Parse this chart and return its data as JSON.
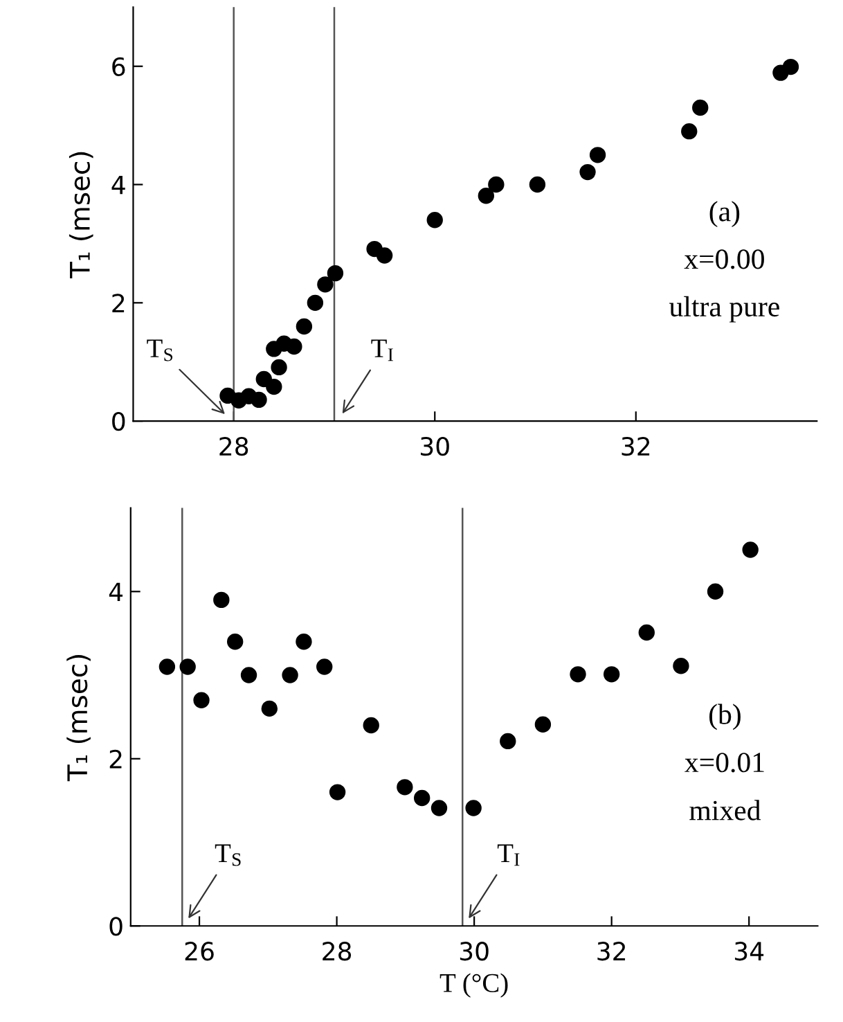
{
  "chart_data": [
    {
      "type": "scatter",
      "ylabel": "T₁ (msec)",
      "xlim": [
        27,
        33.8
      ],
      "ylim": [
        0,
        7
      ],
      "xticks": [
        28,
        30,
        32
      ],
      "yticks": [
        0,
        2,
        4,
        6
      ],
      "marker": "circle",
      "grid": false,
      "legend": false,
      "annotations": [
        "(a)",
        "x=0.00",
        "ultra pure"
      ],
      "ref_lines": [
        {
          "axis": "x",
          "value": 28.0,
          "label": "T$_{S}$",
          "color": "#555555"
        },
        {
          "axis": "x",
          "value": 29.0,
          "label": "T$_{I}$",
          "color": "#555555"
        }
      ],
      "series": [
        {
          "color": "#000000",
          "x": [
            27.94,
            28.05,
            28.15,
            28.25,
            28.3,
            28.4,
            28.4,
            28.45,
            28.5,
            28.6,
            28.7,
            28.81,
            28.91,
            29.01,
            29.4,
            29.5,
            30.0,
            30.51,
            30.61,
            31.02,
            31.52,
            31.62,
            32.53,
            32.64,
            33.44,
            33.54
          ],
          "values": [
            0.43,
            0.35,
            0.42,
            0.36,
            0.71,
            0.58,
            1.22,
            0.91,
            1.31,
            1.26,
            1.6,
            2.0,
            2.31,
            2.5,
            2.91,
            2.8,
            3.4,
            3.81,
            4.0,
            4.0,
            4.21,
            4.5,
            4.9,
            5.3,
            5.89,
            5.99
          ]
        }
      ]
    },
    {
      "type": "scatter",
      "xlabel": "T (°C)",
      "ylabel": "T₁ (msec)",
      "xlim": [
        25,
        35
      ],
      "ylim": [
        0,
        5
      ],
      "xticks": [
        26,
        28,
        30,
        32,
        34
      ],
      "yticks": [
        0,
        2,
        4
      ],
      "marker": "circle",
      "grid": false,
      "legend": false,
      "annotations": [
        "(b)",
        "x=0.01",
        "mixed"
      ],
      "ref_lines": [
        {
          "axis": "x",
          "value": 25.75,
          "label": "T$_{S}$",
          "color": "#555555"
        },
        {
          "axis": "x",
          "value": 29.83,
          "label": "T$_{I}$",
          "color": "#555555"
        }
      ],
      "series": [
        {
          "color": "#000000",
          "x": [
            25.53,
            25.83,
            26.03,
            26.32,
            26.52,
            26.72,
            27.02,
            27.32,
            27.52,
            27.82,
            28.01,
            28.5,
            28.99,
            29.24,
            29.49,
            29.99,
            30.49,
            31.0,
            31.51,
            32.0,
            32.51,
            33.01,
            33.51,
            34.02
          ],
          "values": [
            3.1,
            3.1,
            2.7,
            3.9,
            3.4,
            3.0,
            2.6,
            3.0,
            3.4,
            3.1,
            1.6,
            2.4,
            1.66,
            1.53,
            1.41,
            1.41,
            2.21,
            2.41,
            3.01,
            3.01,
            3.51,
            3.11,
            4.0,
            4.5
          ]
        }
      ]
    }
  ]
}
